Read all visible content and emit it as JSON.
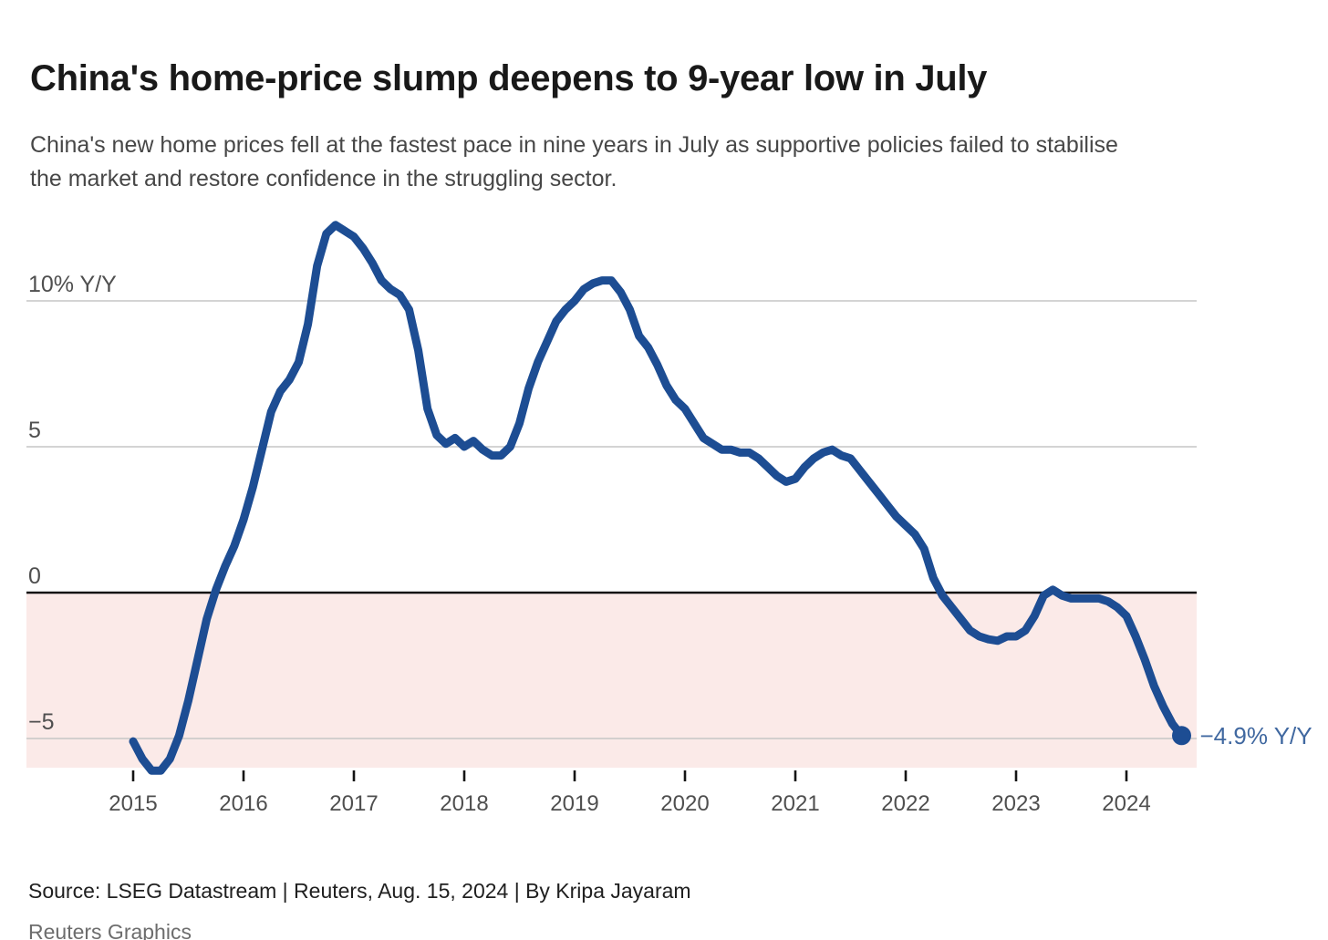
{
  "header": {
    "title": "China's home-price slump deepens to 9-year low in July",
    "subtitle_line1": "China's new home prices fell at the fastest pace in nine years in July as supportive policies failed to stabilise",
    "subtitle_line2": "the market and restore confidence in the struggling sector."
  },
  "footer": {
    "source": "Source: LSEG Datastream | Reuters, Aug. 15, 2024 | By Kripa Jayaram",
    "credit": "Reuters Graphics"
  },
  "chart_data": {
    "type": "line",
    "title": "China's home-price slump deepens to 9-year low in July",
    "x_start": "2015-01",
    "x_end": "2024-07",
    "frequency": "monthly",
    "x_tick_labels": [
      "2015",
      "2016",
      "2017",
      "2018",
      "2019",
      "2020",
      "2021",
      "2022",
      "2023",
      "2024"
    ],
    "y_axis": {
      "unit": "% Y/Y",
      "range": [
        -6,
        13.2
      ],
      "ticks": [
        {
          "value": 10,
          "label": "10% Y/Y"
        },
        {
          "value": 5,
          "label": "5"
        },
        {
          "value": 0,
          "label": "0"
        },
        {
          "value": -5,
          "label": "−5"
        }
      ]
    },
    "series": [
      {
        "name": "New home prices, year-on-year % change",
        "monthly_values": [
          -5.1,
          -5.7,
          -6.1,
          -6.1,
          -5.7,
          -4.9,
          -3.7,
          -2.3,
          -0.9,
          0.1,
          0.9,
          1.6,
          2.5,
          3.6,
          4.9,
          6.2,
          6.9,
          7.3,
          7.9,
          9.2,
          11.2,
          12.3,
          12.6,
          12.4,
          12.2,
          11.8,
          11.3,
          10.7,
          10.4,
          10.2,
          9.7,
          8.3,
          6.3,
          5.4,
          5.1,
          5.3,
          5.0,
          5.2,
          4.9,
          4.7,
          4.7,
          5.0,
          5.8,
          7.0,
          7.9,
          8.6,
          9.3,
          9.7,
          10.0,
          10.4,
          10.6,
          10.7,
          10.7,
          10.3,
          9.7,
          8.8,
          8.4,
          7.8,
          7.1,
          6.6,
          6.3,
          5.8,
          5.3,
          5.1,
          4.9,
          4.9,
          4.8,
          4.8,
          4.6,
          4.3,
          4.0,
          3.8,
          3.9,
          4.3,
          4.6,
          4.8,
          4.9,
          4.7,
          4.6,
          4.2,
          3.8,
          3.4,
          3.0,
          2.6,
          2.3,
          2.0,
          1.5,
          0.5,
          -0.1,
          -0.5,
          -0.9,
          -1.3,
          -1.5,
          -1.6,
          -1.65,
          -1.5,
          -1.5,
          -1.3,
          -0.8,
          -0.1,
          0.1,
          -0.1,
          -0.2,
          -0.2,
          -0.2,
          -0.2,
          -0.3,
          -0.5,
          -0.8,
          -1.5,
          -2.3,
          -3.2,
          -3.9,
          -4.5,
          -4.9
        ]
      }
    ],
    "end_annotation": {
      "label": "−4.9% Y/Y",
      "value": -4.9
    },
    "colors": {
      "line": "#1d4d93",
      "negative_region": "#fbeae8",
      "annotation_text": "#4068a0"
    },
    "grid": "horizontal-only",
    "legend_position": "none"
  }
}
